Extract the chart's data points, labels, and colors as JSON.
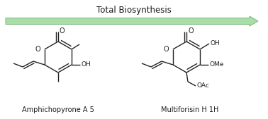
{
  "title": "Total Biosynthesis",
  "title_fontsize": 8.5,
  "label_left": "Amphichopyrone A 5",
  "label_right": "Multiforisin H 1H",
  "label_fontsize": 7.0,
  "arrow_color": "#aaddaa",
  "arrow_edge_color": "#77bb77",
  "background_color": "#ffffff",
  "text_color": "#1a1a1a",
  "line_color": "#222222",
  "line_width": 1.0,
  "fig_width": 3.78,
  "fig_height": 1.69,
  "dpi": 100
}
